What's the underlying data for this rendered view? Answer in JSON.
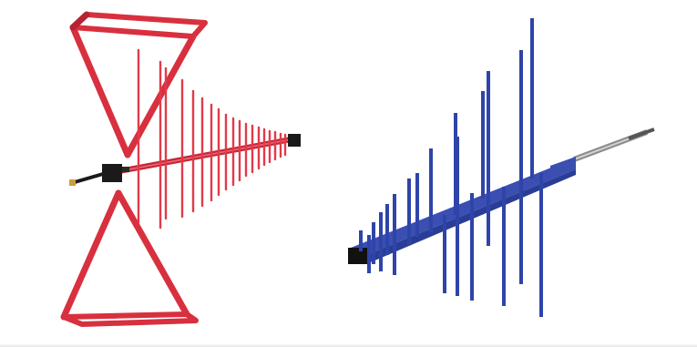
{
  "image": {
    "background": "#ffffff",
    "panels": [
      {
        "name": "biconilog-antenna",
        "color": "#e23a4a",
        "dark_color": "#b01e2e",
        "connector_color": "#1a1a1a"
      },
      {
        "name": "log-periodic-antenna",
        "color": "#3a4fb0",
        "dark_color": "#1f2e78",
        "rod_color": "#a8a8a8"
      }
    ]
  }
}
